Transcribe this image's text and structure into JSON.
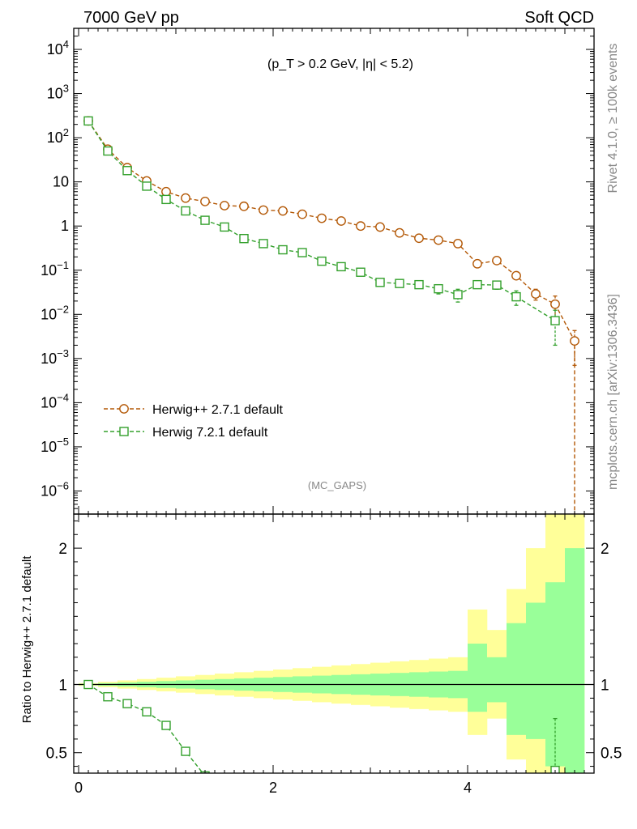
{
  "header": {
    "left_title": "7000 GeV pp",
    "right_title": "Soft QCD",
    "cut_label": "(p_T > 0.2 GeV, |η| < 5.2)",
    "analysis_tag": "(MC_GAPS)",
    "side_label_top": "Rivet 4.1.0, ≥ 100k events",
    "side_label_bottom": "mcplots.cern.ch [arXiv:1306.3436]"
  },
  "chart_data": [
    {
      "type": "line",
      "panel": "main",
      "yscale": "log",
      "xlim": [
        -0.05,
        5.3
      ],
      "ylim": [
        3e-07,
        30000.0
      ],
      "ytick_labels": [
        "10^-6",
        "10^-5",
        "10^-4",
        "10^-3",
        "10^-2",
        "10^-1",
        "1",
        "10",
        "10^2",
        "10^3",
        "10^4"
      ],
      "legend_position": "lower-left",
      "series": [
        {
          "name": "Herwig++ 2.7.1 default",
          "color": "#b35806",
          "marker": "circle",
          "x": [
            0.1,
            0.3,
            0.5,
            0.7,
            0.9,
            1.1,
            1.3,
            1.5,
            1.7,
            1.9,
            2.1,
            2.3,
            2.5,
            2.7,
            2.9,
            3.1,
            3.3,
            3.5,
            3.7,
            3.9,
            4.1,
            4.3,
            4.5,
            4.7,
            4.9,
            5.1
          ],
          "y": [
            240,
            55,
            21,
            10.5,
            6.0,
            4.3,
            3.6,
            2.9,
            2.8,
            2.3,
            2.2,
            1.85,
            1.5,
            1.3,
            1.0,
            0.95,
            0.7,
            0.53,
            0.48,
            0.4,
            0.14,
            0.165,
            0.075,
            0.029,
            0.017,
            0.0025
          ],
          "yerr": [
            0,
            0,
            0,
            0,
            0,
            0,
            0,
            0,
            0,
            0,
            0,
            0,
            0,
            0,
            0,
            0,
            0,
            0,
            0,
            0,
            0,
            0,
            0,
            0.008,
            0.009,
            0.0018
          ]
        },
        {
          "name": "Herwig 7.2.1 default",
          "color": "#33a02c",
          "marker": "square",
          "x": [
            0.1,
            0.3,
            0.5,
            0.7,
            0.9,
            1.1,
            1.3,
            1.5,
            1.7,
            1.9,
            2.1,
            2.3,
            2.5,
            2.7,
            2.9,
            3.1,
            3.3,
            3.5,
            3.7,
            3.9,
            4.1,
            4.3,
            4.5,
            4.7,
            4.9
          ],
          "y": [
            240,
            50,
            18,
            8.0,
            4.0,
            2.2,
            1.35,
            0.95,
            0.52,
            0.4,
            0.29,
            0.25,
            0.16,
            0.12,
            0.09,
            0.053,
            0.05,
            0.047,
            0.038,
            0.028,
            0.047,
            0.046,
            0.025,
            null,
            0.0072
          ],
          "yerr": [
            0,
            0,
            0,
            0,
            0,
            0,
            0,
            0,
            0,
            0,
            0,
            0,
            0,
            0,
            0,
            0.006,
            0.009,
            0.008,
            0.009,
            0.009,
            0.008,
            0.009,
            0.009,
            null,
            0.0052
          ]
        }
      ]
    },
    {
      "type": "line",
      "panel": "ratio",
      "ylabel": "Ratio to Herwig++ 2.7.1 default",
      "xlim": [
        -0.05,
        5.3
      ],
      "ylim": [
        0.35,
        2.25
      ],
      "yticks": [
        0.5,
        1,
        2
      ],
      "ytick_labels": [
        "0.5",
        "1",
        "2"
      ],
      "xticks": [
        0,
        2,
        4
      ],
      "xtick_labels": [
        "0",
        "2",
        "4"
      ],
      "reference_band": {
        "bin_edges": [
          0.0,
          0.2,
          0.4,
          0.6,
          0.8,
          1.0,
          1.2,
          1.4,
          1.6,
          1.8,
          2.0,
          2.2,
          2.4,
          2.6,
          2.8,
          3.0,
          3.2,
          3.4,
          3.6,
          3.8,
          4.0,
          4.2,
          4.4,
          4.6,
          4.8,
          5.0,
          5.2
        ],
        "yellow_lo": [
          0.99,
          0.98,
          0.97,
          0.96,
          0.95,
          0.94,
          0.93,
          0.92,
          0.91,
          0.9,
          0.89,
          0.88,
          0.87,
          0.86,
          0.85,
          0.84,
          0.83,
          0.82,
          0.81,
          0.8,
          0.63,
          0.75,
          0.45,
          0.35,
          0.35,
          0.35
        ],
        "yellow_hi": [
          1.01,
          1.02,
          1.03,
          1.04,
          1.05,
          1.06,
          1.07,
          1.08,
          1.09,
          1.1,
          1.11,
          1.12,
          1.13,
          1.14,
          1.15,
          1.16,
          1.17,
          1.18,
          1.19,
          1.2,
          1.55,
          1.4,
          1.7,
          2.0,
          2.25,
          2.25
        ],
        "green_lo": [
          0.995,
          0.99,
          0.985,
          0.98,
          0.975,
          0.97,
          0.965,
          0.96,
          0.955,
          0.95,
          0.945,
          0.94,
          0.935,
          0.93,
          0.925,
          0.92,
          0.915,
          0.91,
          0.905,
          0.9,
          0.8,
          0.87,
          0.63,
          0.6,
          0.4,
          0.35
        ],
        "green_hi": [
          1.005,
          1.01,
          1.015,
          1.02,
          1.025,
          1.03,
          1.035,
          1.04,
          1.045,
          1.05,
          1.055,
          1.06,
          1.065,
          1.07,
          1.075,
          1.08,
          1.085,
          1.09,
          1.095,
          1.1,
          1.3,
          1.2,
          1.45,
          1.6,
          1.75,
          2.0
        ]
      },
      "series": [
        {
          "name": "Herwig 7.2.1 default",
          "color": "#33a02c",
          "marker": "square",
          "x": [
            0.1,
            0.3,
            0.5,
            0.7,
            0.9,
            1.1,
            1.3,
            4.9
          ],
          "y": [
            1.0,
            0.91,
            0.86,
            0.8,
            0.7,
            0.51,
            0.33,
            0.37
          ],
          "yerr": [
            0,
            0,
            0,
            0,
            0,
            0,
            0,
            0.38
          ]
        }
      ]
    }
  ]
}
